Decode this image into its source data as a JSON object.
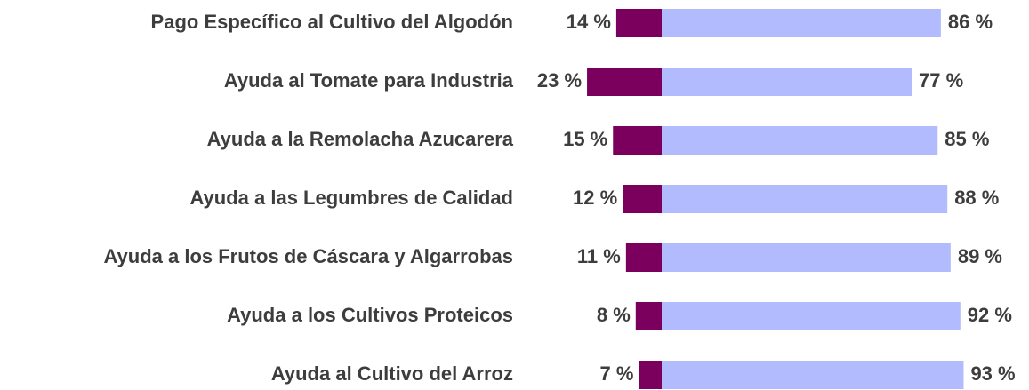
{
  "chart_data": {
    "type": "diverging_bar",
    "categories": [
      "Pago Específico al Cultivo del Algodón",
      "Ayuda al Tomate para Industria",
      "Ayuda a la Remolacha Azucarera",
      "Ayuda a las Legumbres de Calidad",
      "Ayuda a los Frutos de Cáscara y Algarrobas",
      "Ayuda a los Cultivos Proteicos",
      "Ayuda al Cultivo del Arroz"
    ],
    "series": [
      {
        "color": "#7b005e",
        "side": "left",
        "values": [
          14,
          23,
          15,
          12,
          11,
          8,
          7
        ],
        "value_labels": [
          "14 %",
          "23 %",
          "15 %",
          "12 %",
          "11 %",
          "8 %",
          "7 %"
        ]
      },
      {
        "color": "#b3bbff",
        "side": "right",
        "values": [
          86,
          77,
          85,
          88,
          89,
          92,
          93
        ],
        "value_labels": [
          "86 %",
          "77 %",
          "85 %",
          "88 %",
          "89 %",
          "92 %",
          "93 %"
        ]
      }
    ]
  }
}
